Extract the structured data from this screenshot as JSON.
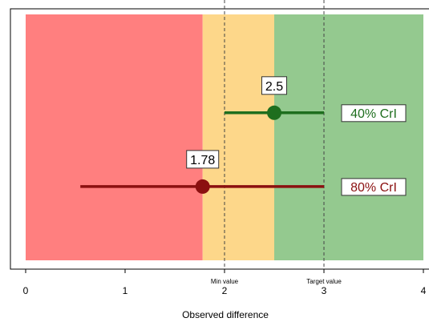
{
  "chart_data": {
    "type": "scatter",
    "xlabel": "Observed difference",
    "xlim": [
      0,
      4
    ],
    "x_ticks": [
      "0",
      "1",
      "2",
      "3",
      "4"
    ],
    "grid": false,
    "zones": [
      {
        "name": "red",
        "from": 0,
        "to": 1.78,
        "color": "#ff7f7f"
      },
      {
        "name": "amber",
        "from": 1.78,
        "to": 2.5,
        "color": "#fdd78a"
      },
      {
        "name": "green",
        "from": 2.5,
        "to": 4,
        "color": "#94c98f"
      }
    ],
    "reference_lines": [
      {
        "label": "Min value",
        "x": 2
      },
      {
        "label": "Target value",
        "x": 3
      }
    ],
    "series": [
      {
        "name": "40% CrI",
        "point": 2.5,
        "point_label": "2.5",
        "interval": [
          2.0,
          3.0
        ],
        "level": 0.6,
        "color": "#1e6e1e"
      },
      {
        "name": "80% CrI",
        "point": 1.78,
        "point_label": "1.78",
        "interval": [
          0.55,
          3.0
        ],
        "level": 0.3,
        "color": "#8b1010"
      }
    ]
  }
}
